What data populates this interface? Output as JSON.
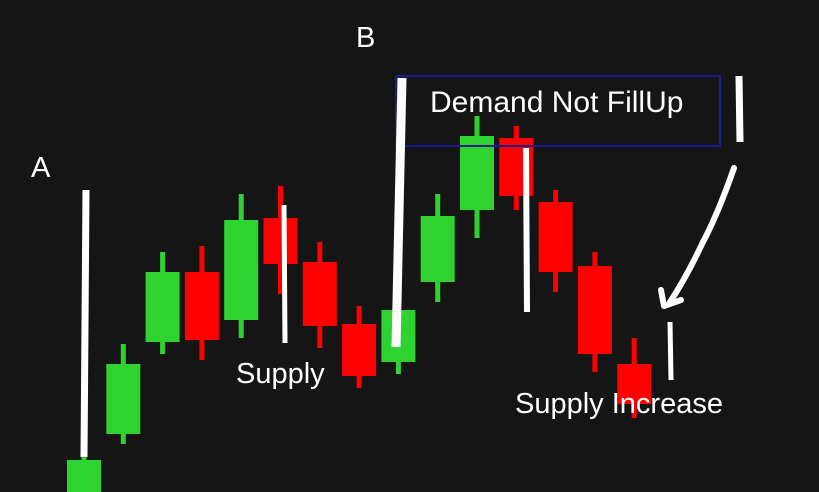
{
  "chart_data": {
    "type": "candlestick",
    "colors": {
      "up": "#2fd32f",
      "down": "#ff0000",
      "background": "#151515",
      "box": "#1a1a8c",
      "annotation": "#ffffff"
    },
    "ylim": [
      0,
      100
    ],
    "candles": [
      {
        "open": 8.5,
        "close": 17.5,
        "high": 20,
        "low": 5.5
      },
      {
        "open": 24,
        "close": 41.5,
        "high": 46.5,
        "low": 21.5
      },
      {
        "open": 47,
        "close": 64.5,
        "high": 69.5,
        "low": 44
      },
      {
        "open": 64.5,
        "close": 47.5,
        "high": 71,
        "low": 42.5
      },
      {
        "open": 52.5,
        "close": 77.5,
        "high": 84,
        "low": 48
      },
      {
        "open": 78,
        "close": 66.5,
        "high": 86,
        "low": 59
      },
      {
        "open": 67,
        "close": 51,
        "high": 72,
        "low": 45.5
      },
      {
        "open": 51.5,
        "close": 38.5,
        "high": 56,
        "low": 35.5
      },
      {
        "open": 42,
        "close": 55,
        "high": 57.5,
        "low": 39
      },
      {
        "open": 62,
        "close": 78.5,
        "high": 84,
        "low": 57
      },
      {
        "open": 80,
        "close": 98.5,
        "high": 103.5,
        "low": 73
      },
      {
        "open": 98,
        "close": 83.5,
        "high": 101,
        "low": 80
      },
      {
        "open": 82,
        "close": 64.5,
        "high": 85,
        "low": 59.5
      },
      {
        "open": 66,
        "close": 44,
        "high": 69.5,
        "low": 39.5
      },
      {
        "open": 41.5,
        "close": 31.5,
        "high": 48,
        "low": 28
      }
    ],
    "annotations": {
      "point_a": "A",
      "point_b": "B",
      "box_text": "Demand Not FillUp",
      "supply_label": "Supply",
      "supply_increase_label": "Supply Increase"
    }
  }
}
